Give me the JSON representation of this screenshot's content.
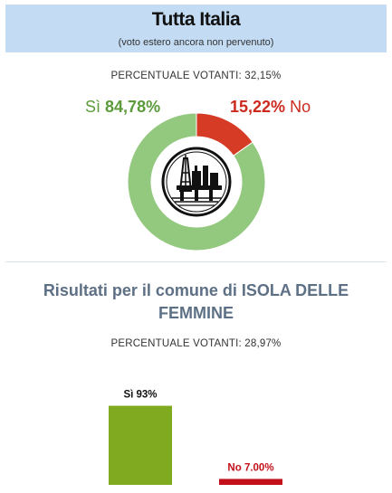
{
  "header": {
    "title": "Tutta Italia",
    "subtitle": "(voto estero ancora non pervenuto)"
  },
  "national": {
    "turnout_label": "PERCENTUALE VOTANTI: 32,15%",
    "yes_word": "Sì",
    "yes_value": "84,78%",
    "no_value": "15,22%",
    "no_word": "No"
  },
  "colors": {
    "yes_donut": "#93c87f",
    "no_donut": "#d63b26",
    "yes_bar": "#80aa20",
    "no_bar": "#c4101a",
    "header_bg": "#c3dcf4",
    "section_title": "#5d7085"
  },
  "center_icon": "oil-platform-icon",
  "comune": {
    "title": "Risultati per il comune di ISOLA DELLE FEMMINE",
    "turnout_label": "PERCENTUALE VOTANTI: 28,97%"
  },
  "chart_data": [
    {
      "type": "pie",
      "title": "Tutta Italia",
      "categories": [
        "Sì",
        "No"
      ],
      "values": [
        84.78,
        15.22
      ],
      "unit": "%"
    },
    {
      "type": "bar",
      "title": "Risultati per il comune di ISOLA DELLE FEMMINE",
      "categories": [
        "Sì",
        "No"
      ],
      "values": [
        93,
        7.0
      ],
      "data_labels": [
        "Sì 93%",
        "No 7.00%"
      ],
      "ylim": [
        0,
        100
      ]
    }
  ]
}
